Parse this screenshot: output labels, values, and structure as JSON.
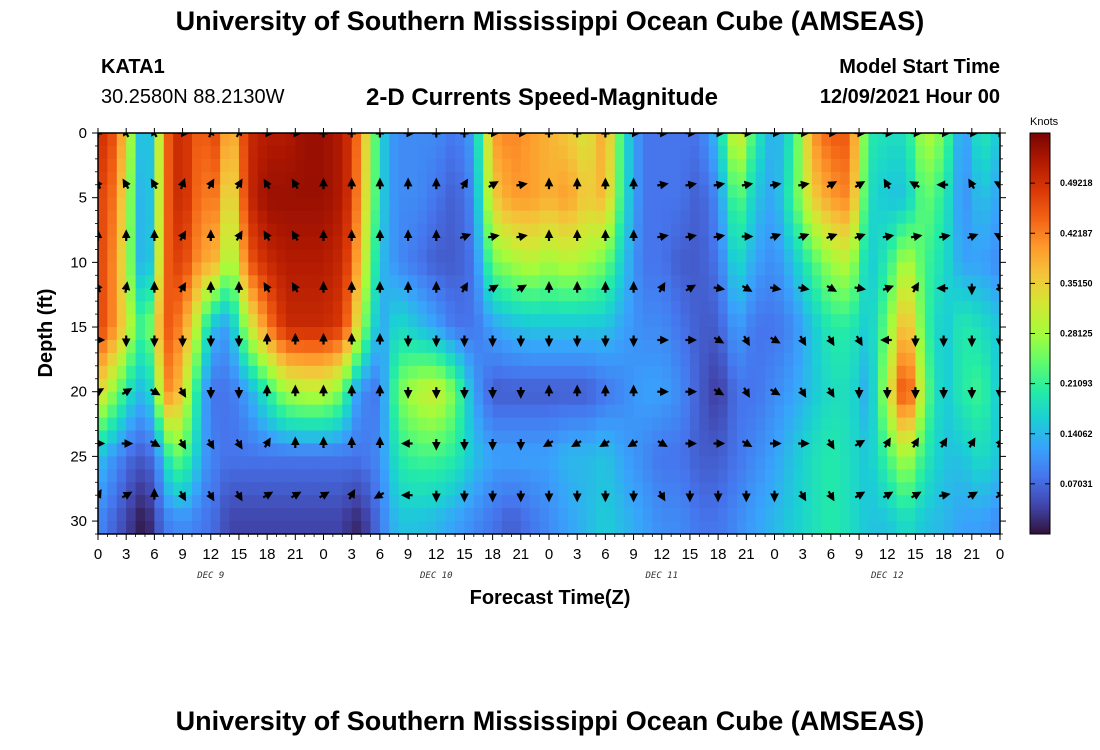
{
  "header": {
    "title": "University of Southern Mississippi Ocean Cube (AMSEAS)",
    "station_id": "KATA1",
    "station_coords": "30.2580N  88.2130W",
    "plot_title": "2-D Currents Speed-Magnitude",
    "model_start_label": "Model Start Time",
    "model_start_value": "12/09/2021 Hour 00"
  },
  "footer": {
    "title": "University of Southern Mississippi Ocean Cube (AMSEAS)"
  },
  "chart_data": {
    "type": "heatmap",
    "title": "2-D Currents Speed-Magnitude",
    "xlabel": "Forecast Time(Z)",
    "ylabel": "Depth (ft)",
    "xlim": [
      0,
      96
    ],
    "ylim": [
      31,
      0
    ],
    "x_ticks": [
      0,
      3,
      6,
      9,
      12,
      15,
      18,
      21,
      24,
      27,
      30,
      33,
      36,
      39,
      42,
      45,
      48,
      51,
      54,
      57,
      60,
      63,
      66,
      69,
      72,
      75,
      78,
      81,
      84,
      87,
      90,
      93,
      96
    ],
    "x_tick_labels": [
      "0",
      "3",
      "6",
      "9",
      "12",
      "15",
      "18",
      "21",
      "0",
      "3",
      "6",
      "9",
      "12",
      "15",
      "18",
      "21",
      "0",
      "3",
      "6",
      "9",
      "12",
      "15",
      "18",
      "21",
      "0",
      "3",
      "6",
      "9",
      "12",
      "15",
      "18",
      "21",
      "0"
    ],
    "day_labels": [
      {
        "x": 12,
        "text": "DEC 9"
      },
      {
        "x": 36,
        "text": "DEC 10"
      },
      {
        "x": 60,
        "text": "DEC 11"
      },
      {
        "x": 84,
        "text": "DEC 12"
      }
    ],
    "y_ticks": [
      0,
      5,
      10,
      15,
      20,
      25,
      30
    ],
    "y_tick_labels": [
      "0",
      "5",
      "10",
      "15",
      "20",
      "25",
      "30"
    ],
    "colorbar": {
      "label": "Knots",
      "range": [
        0,
        0.5625
      ],
      "ticks": [
        0.07031,
        0.14062,
        0.21093,
        0.28125,
        0.3515,
        0.42187,
        0.49218
      ],
      "tick_labels": [
        "0.07031",
        "0.14062",
        "0.21093",
        "0.28125",
        "0.35150",
        "0.42187",
        "0.49218"
      ],
      "colors": [
        "#30123b",
        "#4145ab",
        "#4675ed",
        "#39a2fc",
        "#1bcfd4",
        "#24eca6",
        "#61fc6c",
        "#a4fc3b",
        "#d1e834",
        "#f3c63a",
        "#fe9b2d",
        "#f36315",
        "#d93806",
        "#b11901",
        "#7a0403"
      ]
    },
    "speed_keyframes": {
      "depths": [
        0,
        5,
        10,
        15,
        20,
        25,
        30
      ],
      "hours": [
        0,
        2,
        4,
        5,
        6,
        7,
        8,
        10,
        11,
        12,
        13,
        14,
        16,
        18,
        20,
        22,
        24,
        26,
        27,
        28,
        30,
        31,
        32,
        34,
        36,
        38,
        40,
        42,
        44,
        46,
        48,
        50,
        52,
        54,
        56,
        58,
        60,
        62,
        64,
        66,
        68,
        70,
        72,
        74,
        76,
        78,
        80,
        82,
        84,
        86,
        88,
        90,
        92,
        94,
        96
      ],
      "rows": [
        [
          0.5,
          0.45,
          0.22,
          0.08,
          0.22,
          0.4,
          0.5,
          0.48,
          0.42,
          0.48,
          0.45,
          0.35,
          0.5,
          0.52,
          0.52,
          0.54,
          0.54,
          0.52,
          0.48,
          0.4,
          0.18,
          0.12,
          0.1,
          0.1,
          0.1,
          0.08,
          0.12,
          0.4,
          0.42,
          0.4,
          0.38,
          0.36,
          0.32,
          0.4,
          0.18,
          0.08,
          0.08,
          0.08,
          0.08,
          0.15,
          0.35,
          0.2,
          0.12,
          0.2,
          0.4,
          0.45,
          0.45,
          0.2,
          0.18,
          0.18,
          0.3,
          0.25,
          0.1,
          0.2,
          0.15
        ],
        [
          0.48,
          0.42,
          0.2,
          0.08,
          0.22,
          0.4,
          0.5,
          0.48,
          0.4,
          0.45,
          0.4,
          0.3,
          0.5,
          0.54,
          0.54,
          0.54,
          0.54,
          0.52,
          0.48,
          0.38,
          0.18,
          0.12,
          0.1,
          0.1,
          0.08,
          0.06,
          0.1,
          0.35,
          0.4,
          0.4,
          0.38,
          0.4,
          0.35,
          0.38,
          0.18,
          0.08,
          0.08,
          0.08,
          0.06,
          0.1,
          0.25,
          0.15,
          0.12,
          0.22,
          0.35,
          0.4,
          0.42,
          0.18,
          0.15,
          0.15,
          0.25,
          0.2,
          0.1,
          0.15,
          0.12
        ],
        [
          0.48,
          0.4,
          0.2,
          0.08,
          0.22,
          0.42,
          0.48,
          0.45,
          0.38,
          0.4,
          0.35,
          0.25,
          0.45,
          0.5,
          0.52,
          0.52,
          0.52,
          0.5,
          0.45,
          0.35,
          0.15,
          0.12,
          0.1,
          0.08,
          0.06,
          0.06,
          0.08,
          0.25,
          0.28,
          0.3,
          0.28,
          0.3,
          0.28,
          0.25,
          0.15,
          0.08,
          0.08,
          0.06,
          0.06,
          0.08,
          0.18,
          0.12,
          0.1,
          0.15,
          0.22,
          0.28,
          0.3,
          0.15,
          0.2,
          0.3,
          0.22,
          0.18,
          0.12,
          0.12,
          0.1
        ],
        [
          0.48,
          0.4,
          0.25,
          0.2,
          0.3,
          0.45,
          0.45,
          0.35,
          0.25,
          0.15,
          0.12,
          0.12,
          0.3,
          0.42,
          0.5,
          0.5,
          0.5,
          0.48,
          0.4,
          0.28,
          0.12,
          0.15,
          0.18,
          0.15,
          0.12,
          0.08,
          0.08,
          0.12,
          0.14,
          0.15,
          0.15,
          0.15,
          0.15,
          0.15,
          0.12,
          0.1,
          0.1,
          0.08,
          0.06,
          0.06,
          0.12,
          0.08,
          0.08,
          0.1,
          0.15,
          0.2,
          0.2,
          0.15,
          0.25,
          0.4,
          0.22,
          0.15,
          0.2,
          0.18,
          0.15
        ],
        [
          0.35,
          0.25,
          0.15,
          0.14,
          0.2,
          0.4,
          0.42,
          0.25,
          0.15,
          0.08,
          0.08,
          0.08,
          0.12,
          0.2,
          0.28,
          0.3,
          0.3,
          0.25,
          0.15,
          0.1,
          0.08,
          0.18,
          0.25,
          0.3,
          0.32,
          0.25,
          0.12,
          0.06,
          0.06,
          0.06,
          0.06,
          0.06,
          0.06,
          0.08,
          0.1,
          0.12,
          0.12,
          0.1,
          0.06,
          0.03,
          0.08,
          0.08,
          0.1,
          0.12,
          0.15,
          0.18,
          0.18,
          0.12,
          0.3,
          0.5,
          0.25,
          0.15,
          0.2,
          0.22,
          0.15
        ],
        [
          0.15,
          0.1,
          0.06,
          0.06,
          0.08,
          0.15,
          0.25,
          0.2,
          0.12,
          0.1,
          0.08,
          0.08,
          0.08,
          0.08,
          0.08,
          0.08,
          0.08,
          0.08,
          0.08,
          0.08,
          0.1,
          0.15,
          0.2,
          0.22,
          0.22,
          0.2,
          0.15,
          0.12,
          0.12,
          0.12,
          0.12,
          0.14,
          0.14,
          0.15,
          0.12,
          0.1,
          0.08,
          0.08,
          0.06,
          0.06,
          0.08,
          0.1,
          0.12,
          0.15,
          0.18,
          0.2,
          0.18,
          0.15,
          0.22,
          0.3,
          0.2,
          0.15,
          0.15,
          0.18,
          0.15
        ],
        [
          0.1,
          0.06,
          0.02,
          0.0,
          0.04,
          0.08,
          0.1,
          0.1,
          0.08,
          0.08,
          0.06,
          0.04,
          0.04,
          0.04,
          0.04,
          0.04,
          0.04,
          0.04,
          0.02,
          0.02,
          0.08,
          0.12,
          0.15,
          0.15,
          0.14,
          0.12,
          0.1,
          0.08,
          0.06,
          0.08,
          0.1,
          0.12,
          0.14,
          0.16,
          0.14,
          0.12,
          0.1,
          0.1,
          0.08,
          0.08,
          0.1,
          0.12,
          0.14,
          0.16,
          0.18,
          0.2,
          0.18,
          0.15,
          0.15,
          0.18,
          0.15,
          0.14,
          0.12,
          0.12,
          0.1
        ]
      ]
    },
    "arrow_grid": {
      "hours": [
        0,
        3,
        6,
        9,
        12,
        15,
        18,
        21,
        24,
        27,
        30,
        33,
        36,
        39,
        42,
        45,
        48,
        51,
        54,
        57,
        60,
        63,
        66,
        69,
        72,
        75,
        78,
        81,
        84,
        87,
        90,
        93,
        96
      ],
      "depths": [
        0,
        4,
        8,
        12,
        16,
        20,
        24,
        28
      ],
      "rows": [
        [
          0,
          330,
          330,
          90,
          20,
          30,
          90,
          90,
          0,
          0,
          0,
          90,
          0,
          0,
          90,
          90,
          0,
          0,
          0,
          90,
          90,
          90,
          90,
          90,
          90,
          90,
          90,
          90,
          90,
          90,
          90,
          90,
          90
        ],
        [
          330,
          330,
          330,
          20,
          30,
          30,
          330,
          330,
          0,
          0,
          0,
          0,
          0,
          30,
          60,
          80,
          0,
          0,
          0,
          0,
          80,
          80,
          80,
          80,
          80,
          80,
          60,
          60,
          330,
          300,
          270,
          330,
          300
        ],
        [
          0,
          0,
          0,
          30,
          0,
          30,
          330,
          330,
          0,
          0,
          0,
          0,
          0,
          70,
          80,
          80,
          0,
          0,
          0,
          0,
          80,
          80,
          80,
          90,
          70,
          70,
          70,
          70,
          80,
          80,
          80,
          70,
          300
        ],
        [
          330,
          10,
          0,
          30,
          0,
          0,
          330,
          330,
          0,
          0,
          0,
          0,
          0,
          30,
          60,
          60,
          0,
          0,
          0,
          0,
          30,
          60,
          100,
          120,
          100,
          100,
          120,
          100,
          70,
          30,
          270,
          180,
          150
        ],
        [
          90,
          180,
          180,
          180,
          180,
          180,
          0,
          0,
          0,
          0,
          0,
          180,
          180,
          180,
          180,
          180,
          180,
          180,
          180,
          180,
          90,
          90,
          120,
          150,
          120,
          150,
          150,
          150,
          270,
          180,
          180,
          180,
          180
        ],
        [
          60,
          60,
          120,
          150,
          180,
          180,
          0,
          0,
          0,
          0,
          0,
          180,
          180,
          180,
          180,
          180,
          0,
          0,
          0,
          0,
          90,
          90,
          120,
          150,
          120,
          150,
          150,
          180,
          180,
          180,
          180,
          180,
          180
        ],
        [
          90,
          90,
          120,
          150,
          150,
          150,
          30,
          0,
          0,
          0,
          0,
          270,
          180,
          180,
          180,
          180,
          240,
          240,
          240,
          240,
          120,
          90,
          90,
          120,
          90,
          90,
          150,
          60,
          30,
          30,
          30,
          30,
          30
        ],
        [
          30,
          60,
          0,
          150,
          150,
          150,
          60,
          60,
          60,
          30,
          240,
          270,
          180,
          180,
          180,
          180,
          180,
          180,
          180,
          180,
          150,
          180,
          180,
          180,
          180,
          150,
          150,
          60,
          60,
          60,
          80,
          60,
          60
        ]
      ]
    }
  }
}
